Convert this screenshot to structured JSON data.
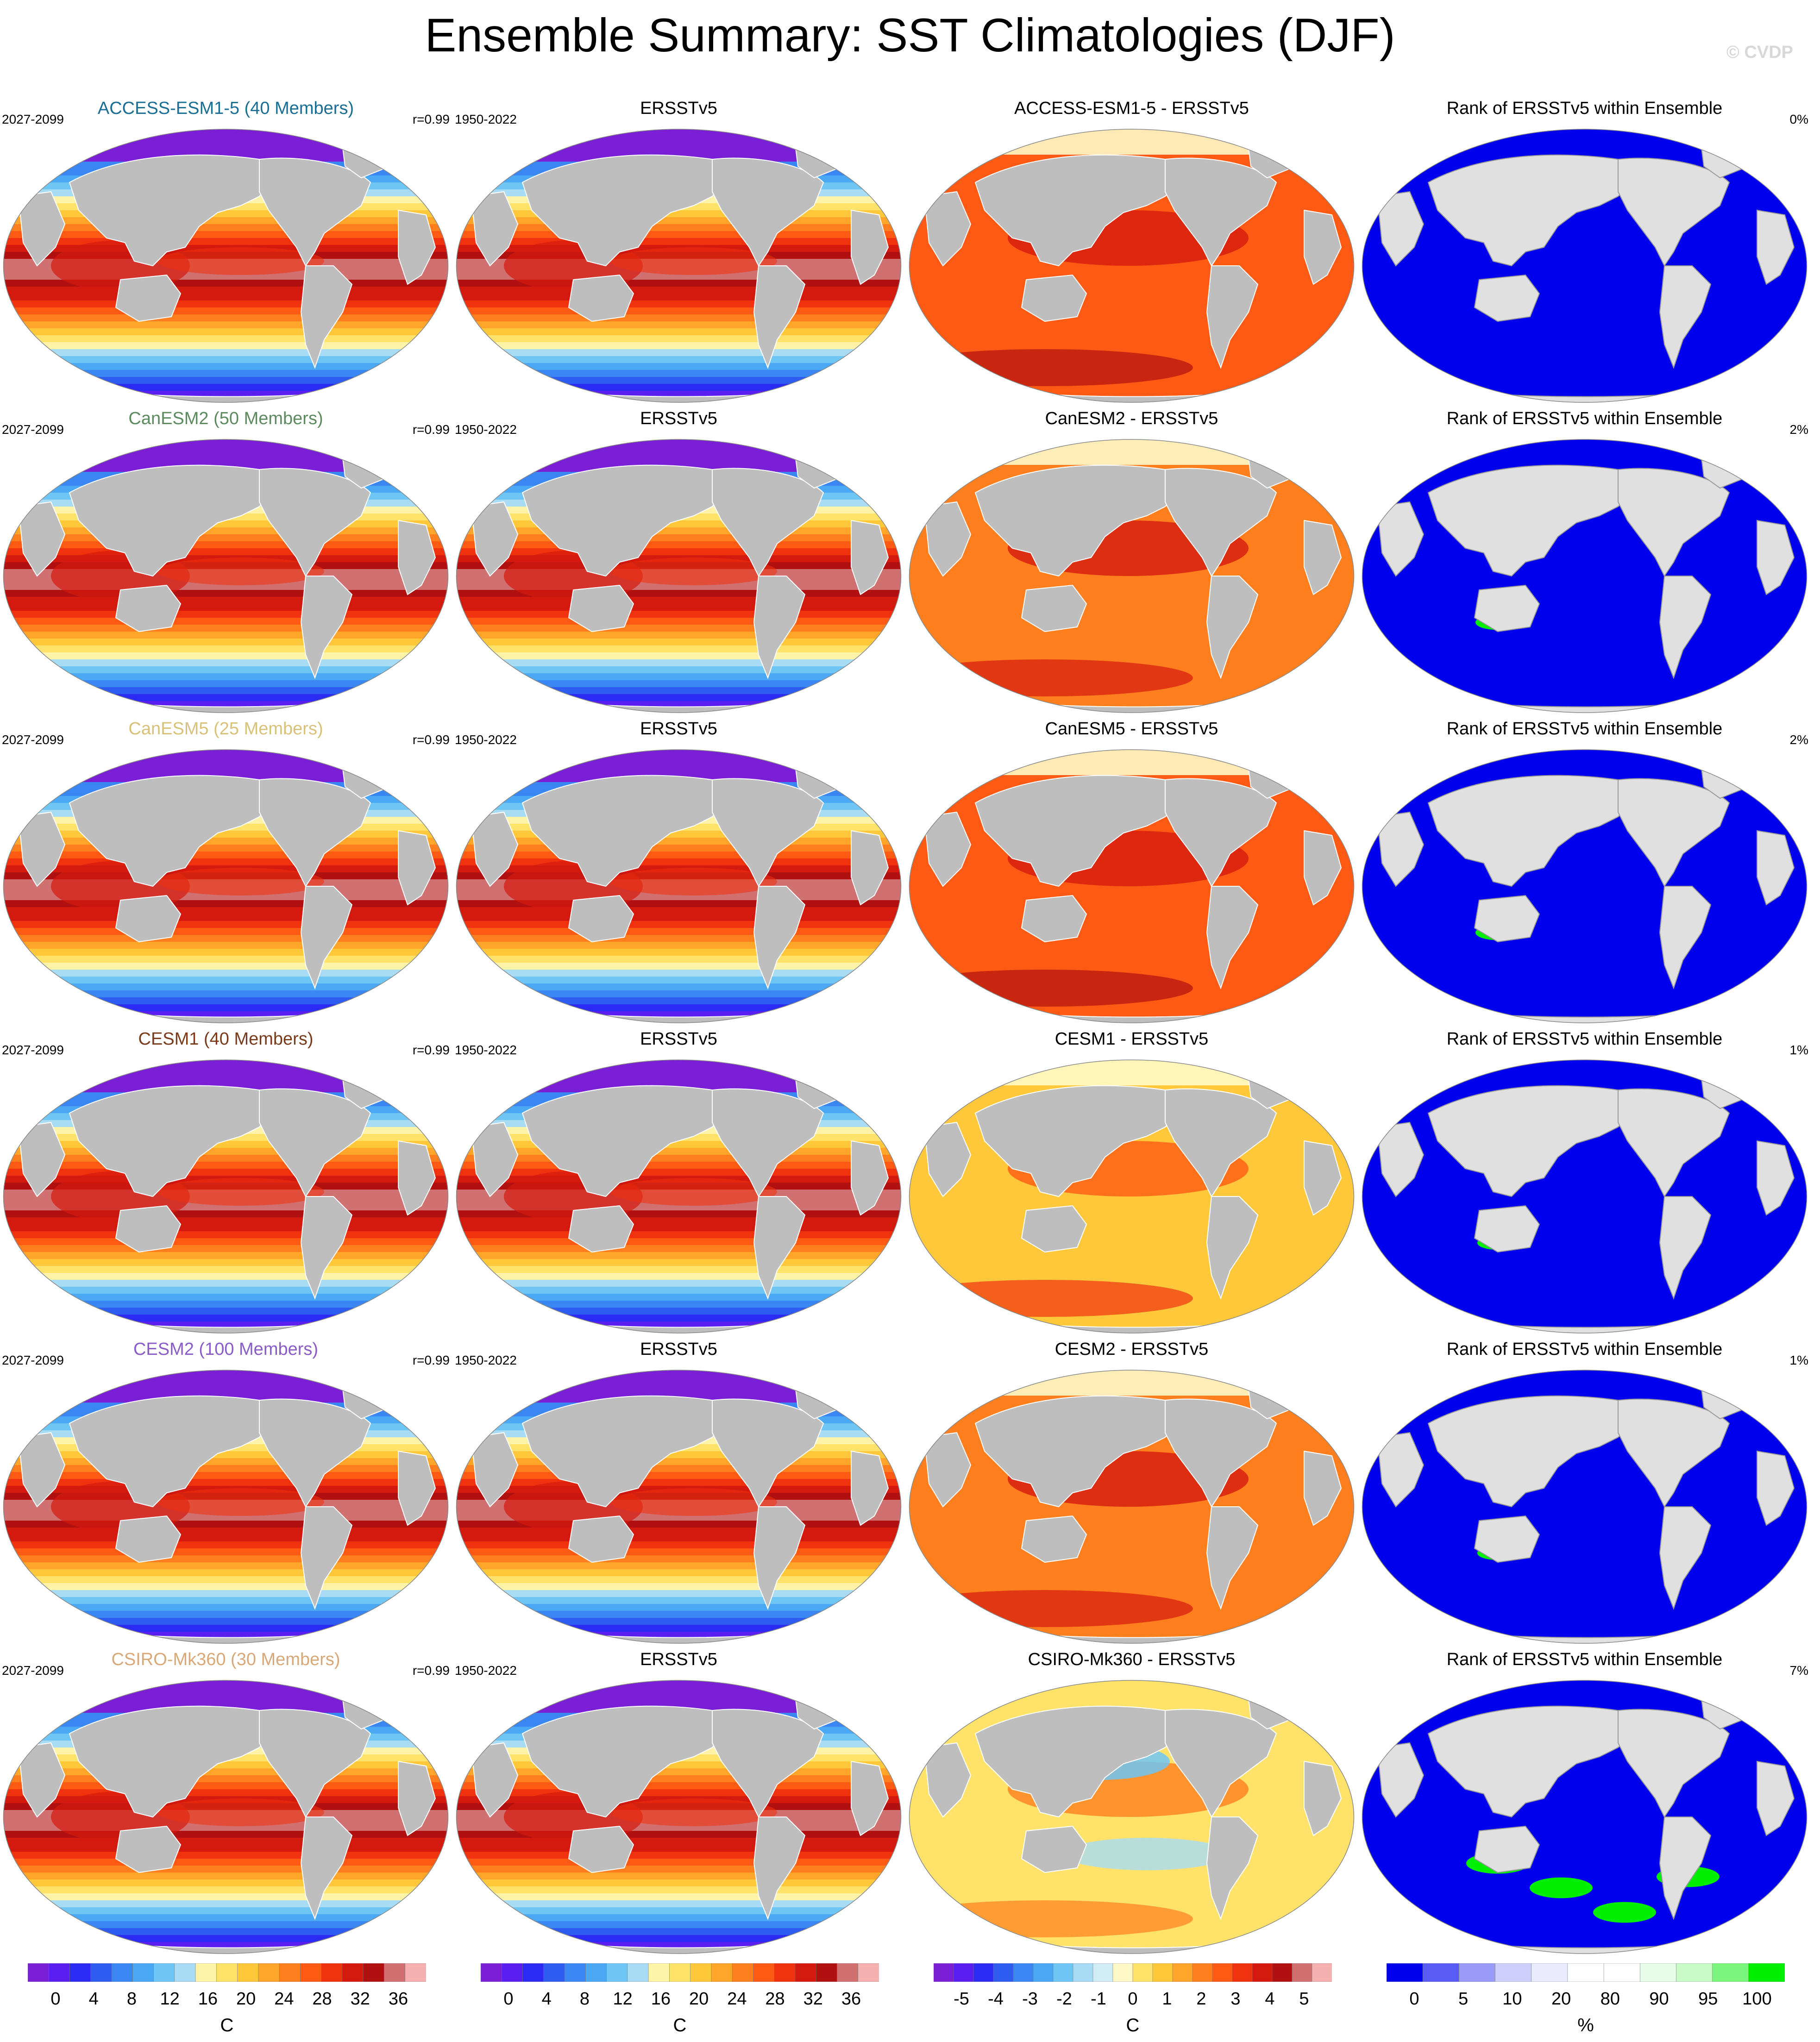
{
  "figure": {
    "title": "Ensemble Summary: SST Climatologies (DJF)",
    "watermark": "© CVDP"
  },
  "rows": [
    {
      "model": {
        "title": "ACCESS-ESM1-5 (40 Members)",
        "title_color": "#1a6e94",
        "left": "2027-2099",
        "right": "r=0.99"
      },
      "obs": {
        "title": "ERSSTv5",
        "left": "1950-2022",
        "right": ""
      },
      "diff": {
        "title": "ACCESS-ESM1-5 - ERSSTv5",
        "left": "",
        "right": ""
      },
      "rank": {
        "title": "Rank of ERSSTv5 within Ensemble",
        "left": "",
        "right": "0%"
      },
      "rank_green_fraction": 0.0,
      "diff_pattern": "warm-strong"
    },
    {
      "model": {
        "title": "CanESM2 (50 Members)",
        "title_color": "#5d8a5e",
        "left": "2027-2099",
        "right": "r=0.99"
      },
      "obs": {
        "title": "ERSSTv5",
        "left": "1950-2022",
        "right": ""
      },
      "diff": {
        "title": "CanESM2 - ERSSTv5",
        "left": "",
        "right": ""
      },
      "rank": {
        "title": "Rank of ERSSTv5 within Ensemble",
        "left": "",
        "right": "2%"
      },
      "rank_green_fraction": 0.02,
      "diff_pattern": "warm"
    },
    {
      "model": {
        "title": "CanESM5 (25 Members)",
        "title_color": "#d8c27a",
        "left": "2027-2099",
        "right": "r=0.99"
      },
      "obs": {
        "title": "ERSSTv5",
        "left": "1950-2022",
        "right": ""
      },
      "diff": {
        "title": "CanESM5 - ERSSTv5",
        "left": "",
        "right": ""
      },
      "rank": {
        "title": "Rank of ERSSTv5 within Ensemble",
        "left": "",
        "right": "2%"
      },
      "rank_green_fraction": 0.02,
      "diff_pattern": "warm-strong"
    },
    {
      "model": {
        "title": "CESM1 (40 Members)",
        "title_color": "#7a3b1a",
        "left": "2027-2099",
        "right": "r=0.99"
      },
      "obs": {
        "title": "ERSSTv5",
        "left": "1950-2022",
        "right": ""
      },
      "diff": {
        "title": "CESM1 - ERSSTv5",
        "left": "",
        "right": ""
      },
      "rank": {
        "title": "Rank of ERSSTv5 within Ensemble",
        "left": "",
        "right": "1%"
      },
      "rank_green_fraction": 0.01,
      "diff_pattern": "warm-light"
    },
    {
      "model": {
        "title": "CESM2 (100 Members)",
        "title_color": "#8a5cc8",
        "left": "2027-2099",
        "right": "r=0.99"
      },
      "obs": {
        "title": "ERSSTv5",
        "left": "1950-2022",
        "right": ""
      },
      "diff": {
        "title": "CESM2 - ERSSTv5",
        "left": "",
        "right": ""
      },
      "rank": {
        "title": "Rank of ERSSTv5 within Ensemble",
        "left": "",
        "right": "1%"
      },
      "rank_green_fraction": 0.01,
      "diff_pattern": "warm"
    },
    {
      "model": {
        "title": "CSIRO-Mk360 (30 Members)",
        "title_color": "#d8a878",
        "left": "2027-2099",
        "right": "r=0.99"
      },
      "obs": {
        "title": "ERSSTv5",
        "left": "1950-2022",
        "right": ""
      },
      "diff": {
        "title": "CSIRO-Mk360 - ERSSTv5",
        "left": "",
        "right": ""
      },
      "rank": {
        "title": "Rank of ERSSTv5 within Ensemble",
        "left": "",
        "right": "7%"
      },
      "rank_green_fraction": 0.07,
      "diff_pattern": "mixed"
    }
  ],
  "colorbars": {
    "sst": {
      "ticks": [
        "0",
        "4",
        "8",
        "12",
        "16",
        "20",
        "24",
        "28",
        "32",
        "36"
      ],
      "unit": "C",
      "colors": [
        "#7a1fd6",
        "#5a1ff0",
        "#2b2bf5",
        "#2f5cf0",
        "#3a86f2",
        "#4aa8f5",
        "#6fc6f5",
        "#a8dcf5",
        "#fff3a8",
        "#ffe26a",
        "#ffc83a",
        "#ffa52a",
        "#ff7f1e",
        "#ff5a14",
        "#f0320e",
        "#d41a0e",
        "#b01010",
        "#d07070",
        "#f5b0b0"
      ]
    },
    "diff": {
      "ticks": [
        "-5",
        "-4",
        "-3",
        "-2",
        "-1",
        "0",
        "1",
        "2",
        "3",
        "4",
        "5"
      ],
      "unit": "C",
      "colors": [
        "#7a1fd6",
        "#5a1ff0",
        "#2b2bf5",
        "#2f5cf0",
        "#3a86f2",
        "#4aa8f5",
        "#6fc6f5",
        "#a8dcf5",
        "#d0ecf7",
        "#fff9c8",
        "#ffe26a",
        "#ffc83a",
        "#ffa52a",
        "#ff7f1e",
        "#ff5a14",
        "#f0320e",
        "#d41a0e",
        "#b01010",
        "#d07070",
        "#f5b0b0"
      ]
    },
    "rank": {
      "ticks": [
        "0",
        "5",
        "10",
        "20",
        "80",
        "90",
        "95",
        "100"
      ],
      "unit": "%",
      "colors": [
        "#0000ee",
        "#5a5af5",
        "#9a9af8",
        "#cfcffb",
        "#eaeafd",
        "#ffffff",
        "#ffffff",
        "#e8fde8",
        "#c8fbc8",
        "#7cf57c",
        "#00ee00"
      ]
    }
  }
}
